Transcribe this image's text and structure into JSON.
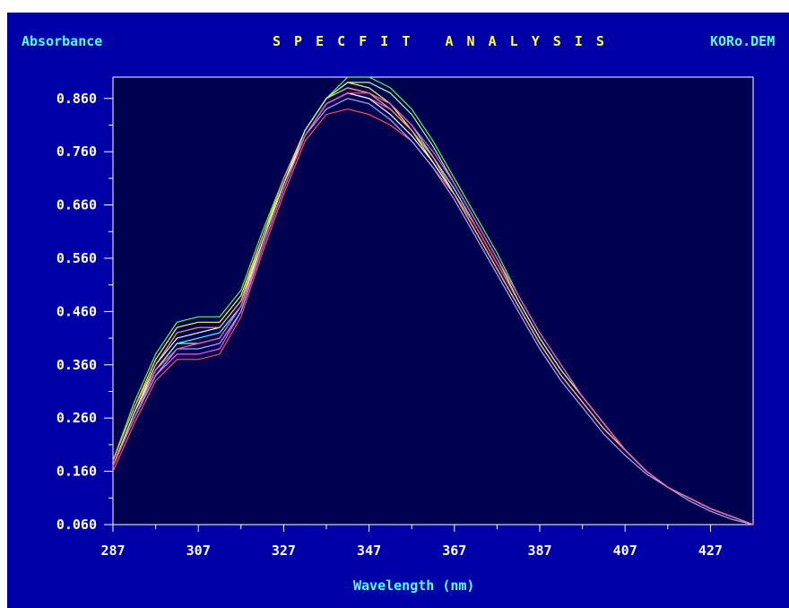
{
  "header": {
    "left_label": "Absorbance",
    "title": "S P E C F I T   A N A L Y S I S",
    "right_label": "KORo.DEM"
  },
  "colors": {
    "screen_bg": "#0000a8",
    "plot_bg": "#000050",
    "axis": "#ffffff",
    "header_text": "#55ffff",
    "title_text": "#ffff55"
  },
  "chart_data": {
    "type": "line",
    "title": "S P E C F I T   A N A L Y S I S",
    "xlabel": "Wavelength (nm)",
    "ylabel": "Absorbance",
    "xlim": [
      287,
      437
    ],
    "ylim": [
      0.06,
      0.9
    ],
    "grid": false,
    "legend": "none",
    "x_ticks": [
      287,
      307,
      327,
      347,
      367,
      387,
      407,
      427
    ],
    "y_ticks": [
      0.06,
      0.16,
      0.26,
      0.36,
      0.46,
      0.56,
      0.66,
      0.76,
      0.86
    ],
    "y_tick_labels": [
      "0.060",
      "0.160",
      "0.260",
      "0.360",
      "0.460",
      "0.560",
      "0.660",
      "0.760",
      "0.860"
    ],
    "x": [
      287,
      292,
      297,
      302,
      307,
      312,
      317,
      322,
      327,
      332,
      337,
      342,
      347,
      352,
      357,
      362,
      367,
      372,
      377,
      382,
      387,
      392,
      397,
      402,
      407,
      412,
      417,
      422,
      427,
      432,
      437
    ],
    "series": [
      {
        "color": "#ffff55",
        "values": [
          0.18,
          0.28,
          0.37,
          0.43,
          0.44,
          0.44,
          0.49,
          0.6,
          0.7,
          0.8,
          0.86,
          0.89,
          0.88,
          0.85,
          0.8,
          0.74,
          0.68,
          0.61,
          0.54,
          0.47,
          0.4,
          0.34,
          0.29,
          0.24,
          0.2,
          0.16,
          0.13,
          0.11,
          0.09,
          0.075,
          0.06
        ]
      },
      {
        "color": "#ff55ff",
        "values": [
          0.17,
          0.26,
          0.34,
          0.38,
          0.38,
          0.39,
          0.46,
          0.58,
          0.69,
          0.79,
          0.85,
          0.87,
          0.86,
          0.84,
          0.8,
          0.75,
          0.69,
          0.62,
          0.55,
          0.48,
          0.41,
          0.35,
          0.3,
          0.25,
          0.2,
          0.16,
          0.13,
          0.11,
          0.09,
          0.075,
          0.06
        ]
      },
      {
        "color": "#55ffff",
        "values": [
          0.17,
          0.27,
          0.35,
          0.4,
          0.41,
          0.42,
          0.47,
          0.59,
          0.7,
          0.8,
          0.86,
          0.88,
          0.87,
          0.85,
          0.81,
          0.75,
          0.69,
          0.62,
          0.55,
          0.48,
          0.41,
          0.35,
          0.3,
          0.25,
          0.2,
          0.16,
          0.13,
          0.11,
          0.09,
          0.075,
          0.06
        ]
      },
      {
        "color": "#55ff55",
        "values": [
          0.18,
          0.29,
          0.38,
          0.44,
          0.45,
          0.45,
          0.5,
          0.61,
          0.71,
          0.8,
          0.86,
          0.9,
          0.9,
          0.88,
          0.84,
          0.78,
          0.71,
          0.64,
          0.57,
          0.49,
          0.42,
          0.36,
          0.3,
          0.25,
          0.2,
          0.16,
          0.13,
          0.11,
          0.09,
          0.075,
          0.06
        ]
      },
      {
        "color": "#ff5555",
        "values": [
          0.16,
          0.25,
          0.33,
          0.37,
          0.37,
          0.38,
          0.45,
          0.57,
          0.68,
          0.78,
          0.83,
          0.84,
          0.83,
          0.81,
          0.78,
          0.73,
          0.68,
          0.62,
          0.55,
          0.48,
          0.41,
          0.35,
          0.3,
          0.25,
          0.2,
          0.16,
          0.13,
          0.11,
          0.09,
          0.075,
          0.06
        ]
      },
      {
        "color": "#ffffff",
        "values": [
          0.17,
          0.27,
          0.36,
          0.41,
          0.42,
          0.43,
          0.48,
          0.59,
          0.7,
          0.79,
          0.85,
          0.87,
          0.86,
          0.83,
          0.79,
          0.74,
          0.68,
          0.61,
          0.54,
          0.47,
          0.4,
          0.34,
          0.29,
          0.24,
          0.2,
          0.16,
          0.13,
          0.11,
          0.09,
          0.075,
          0.06
        ]
      },
      {
        "color": "#aaaaff",
        "values": [
          0.17,
          0.26,
          0.34,
          0.39,
          0.39,
          0.4,
          0.46,
          0.58,
          0.69,
          0.79,
          0.84,
          0.86,
          0.85,
          0.82,
          0.78,
          0.73,
          0.67,
          0.6,
          0.53,
          0.46,
          0.39,
          0.33,
          0.28,
          0.23,
          0.19,
          0.155,
          0.13,
          0.105,
          0.085,
          0.07,
          0.06
        ]
      },
      {
        "color": "#ffaa55",
        "values": [
          0.18,
          0.28,
          0.36,
          0.42,
          0.43,
          0.43,
          0.48,
          0.6,
          0.71,
          0.8,
          0.86,
          0.88,
          0.87,
          0.84,
          0.8,
          0.75,
          0.68,
          0.61,
          0.54,
          0.47,
          0.4,
          0.34,
          0.29,
          0.24,
          0.2,
          0.16,
          0.13,
          0.11,
          0.09,
          0.075,
          0.06
        ]
      },
      {
        "color": "#aaffaa",
        "values": [
          0.17,
          0.27,
          0.35,
          0.4,
          0.4,
          0.41,
          0.47,
          0.59,
          0.7,
          0.8,
          0.86,
          0.89,
          0.89,
          0.87,
          0.83,
          0.77,
          0.7,
          0.63,
          0.56,
          0.48,
          0.41,
          0.35,
          0.3,
          0.25,
          0.2,
          0.16,
          0.13,
          0.11,
          0.09,
          0.075,
          0.06
        ]
      },
      {
        "color": "#ff55aa",
        "values": [
          0.17,
          0.26,
          0.35,
          0.39,
          0.4,
          0.41,
          0.47,
          0.58,
          0.69,
          0.79,
          0.85,
          0.87,
          0.87,
          0.85,
          0.81,
          0.76,
          0.7,
          0.63,
          0.56,
          0.49,
          0.42,
          0.36,
          0.3,
          0.25,
          0.2,
          0.16,
          0.13,
          0.11,
          0.09,
          0.075,
          0.06
        ]
      }
    ]
  }
}
